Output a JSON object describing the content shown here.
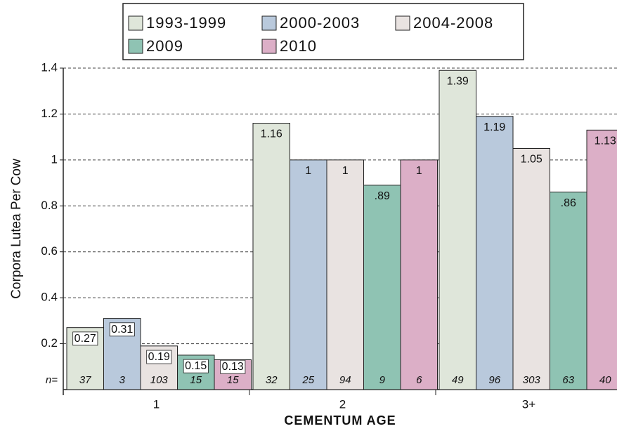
{
  "chart_data": {
    "type": "bar",
    "y_label": "Corpora Lutea Per Cow",
    "x_label": "CEMENTUM AGE",
    "categories": [
      "1",
      "2",
      "3+"
    ],
    "n_label": "n=",
    "series": [
      {
        "name": "1993-1999",
        "color": "#dfe6da",
        "values": [
          0.27,
          1.16,
          1.39
        ],
        "value_labels": [
          "0.27",
          "1.16",
          "1.39"
        ],
        "n": [
          37,
          32,
          49
        ]
      },
      {
        "name": "2000-2003",
        "color": "#b9c9dc",
        "values": [
          0.31,
          1,
          1.19
        ],
        "value_labels": [
          "0.31",
          "1",
          "1.19"
        ],
        "n": [
          3,
          25,
          96
        ]
      },
      {
        "name": "2004-2008",
        "color": "#e9e3e1",
        "values": [
          0.19,
          1,
          1.05
        ],
        "value_labels": [
          "0.19",
          "1",
          "1.05"
        ],
        "n": [
          103,
          94,
          303
        ]
      },
      {
        "name": "2009",
        "color": "#8fc3b3",
        "values": [
          0.15,
          0.89,
          0.86
        ],
        "value_labels": [
          "0.15",
          ".89",
          ".86"
        ],
        "n": [
          15,
          9,
          63
        ]
      },
      {
        "name": "2010",
        "color": "#dcafc7",
        "values": [
          0.13,
          1,
          1.13
        ],
        "value_labels": [
          "0.13",
          "1",
          "1.13"
        ],
        "n": [
          15,
          6,
          40
        ]
      }
    ],
    "ylim": [
      0,
      1.4
    ],
    "yticks": [
      0.2,
      0.4,
      0.6,
      0.8,
      1,
      1.2,
      1.4
    ],
    "grid": true
  }
}
